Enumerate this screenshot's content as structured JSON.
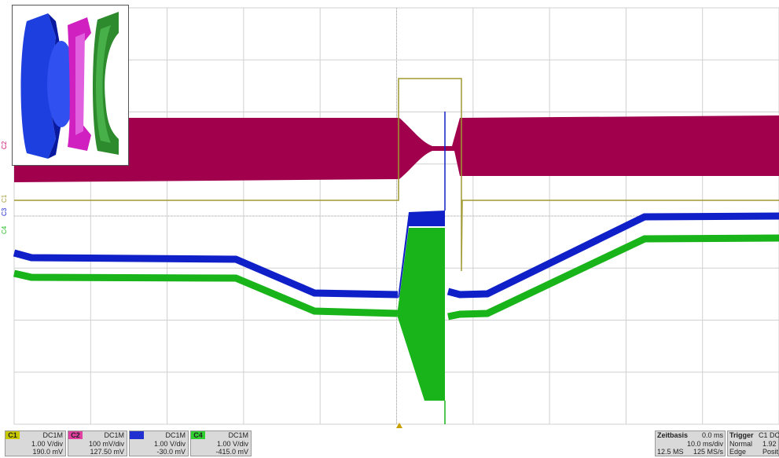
{
  "channels": [
    {
      "tag": "C1",
      "coupling": "DC1M",
      "scale": "1.00 V/div",
      "offset": "190.0 mV",
      "color": "#a09a30"
    },
    {
      "tag": "C2",
      "coupling": "DC1M",
      "scale": "100 mV/div",
      "offset": "127.50 mV",
      "color": "#cc0066"
    },
    {
      "tag": "C3",
      "coupling": "DC1M",
      "scale": "1.00 V/div",
      "offset": "-30.0 mV",
      "color": "#1020c8"
    },
    {
      "tag": "C4",
      "coupling": "DC1M",
      "scale": "1.00 V/div",
      "offset": "-415.0 mV",
      "color": "#22bb22"
    }
  ],
  "timebase": {
    "label": "Zeitbasis",
    "position": "0.0 ms",
    "scale": "10.0 ms/div",
    "memory": "12.5 MS",
    "rate": "125 MS/s"
  },
  "trigger": {
    "label": "Trigger",
    "source": "C1 DC",
    "mode": "Normal",
    "level": "1.92",
    "type": "Edge",
    "slope": "Posit"
  },
  "trace_labels": {
    "c1": "C1",
    "c2": "C2",
    "c3": "C3",
    "c4": "C4"
  },
  "colors": {
    "c1": "#a09a30",
    "c2": "#a0004c",
    "c3": "#1020c8",
    "c4": "#19b419",
    "grid": "#c8c8c8"
  },
  "inset_icon": "ring-cross-section-icon"
}
